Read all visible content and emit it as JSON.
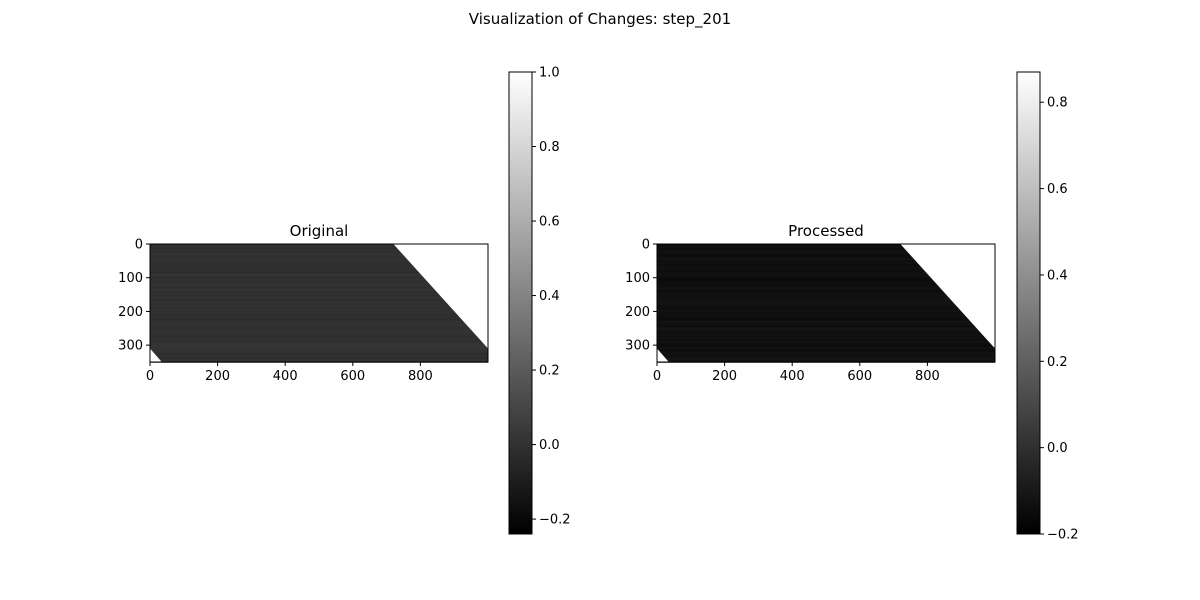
{
  "title": "Visualization of Changes: step_201",
  "chart_data": [
    {
      "type": "heatmap",
      "title": "Original",
      "colormap": "gray",
      "image_shape": [
        350,
        1000
      ],
      "x_ticks": [
        0,
        200,
        400,
        600,
        800
      ],
      "y_ticks": [
        0,
        100,
        200,
        300
      ],
      "xlim": [
        0,
        1000
      ],
      "ylim": [
        350,
        0
      ],
      "grid": false,
      "colorbar": {
        "range": [
          -0.24,
          1.0
        ],
        "ticks": [
          -0.2,
          0.0,
          0.2,
          0.4,
          0.6,
          0.8,
          1.0
        ],
        "tick_labels": [
          "−0.2",
          "0.0",
          "0.2",
          "0.4",
          "0.6",
          "0.8",
          "1.0"
        ]
      },
      "regions": [
        {
          "name": "data",
          "value": 0.0,
          "note": "dark striped band"
        },
        {
          "name": "top-right-triangle",
          "value": 1.0,
          "from_x_at_top": 720,
          "to_y_at_right": 310
        },
        {
          "name": "bottom-left-triangle",
          "value": 1.0,
          "to_x_at_bottom": 35,
          "from_y_at_left": 310
        }
      ]
    },
    {
      "type": "heatmap",
      "title": "Processed",
      "colormap": "gray",
      "image_shape": [
        350,
        1000
      ],
      "x_ticks": [
        0,
        200,
        400,
        600,
        800
      ],
      "y_ticks": [
        0,
        100,
        200,
        300
      ],
      "xlim": [
        0,
        1000
      ],
      "ylim": [
        350,
        0
      ],
      "grid": false,
      "colorbar": {
        "range": [
          -0.2,
          0.87
        ],
        "ticks": [
          -0.2,
          0.0,
          0.2,
          0.4,
          0.6,
          0.8
        ],
        "tick_labels": [
          "−0.2",
          "0.0",
          "0.2",
          "0.4",
          "0.6",
          "0.8"
        ]
      },
      "regions": [
        {
          "name": "data",
          "value": -0.13,
          "note": "near-black striped band"
        },
        {
          "name": "top-right-triangle",
          "value": 0.87,
          "from_x_at_top": 720,
          "to_y_at_right": 310
        },
        {
          "name": "bottom-left-triangle",
          "value": 0.87,
          "to_x_at_bottom": 35,
          "from_y_at_left": 310
        }
      ]
    }
  ]
}
